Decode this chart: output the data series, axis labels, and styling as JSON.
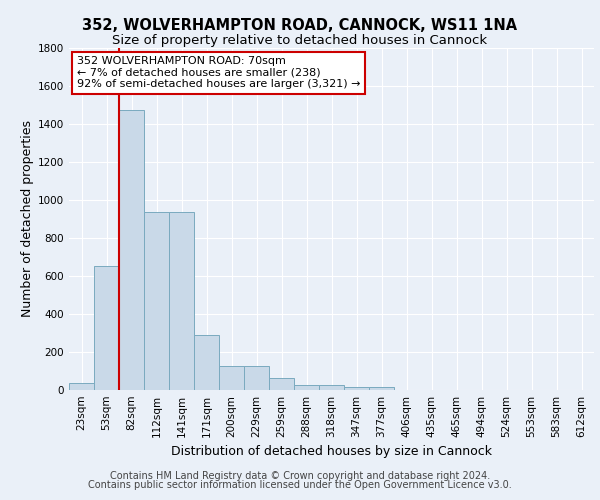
{
  "title_line1": "352, WOLVERHAMPTON ROAD, CANNOCK, WS11 1NA",
  "title_line2": "Size of property relative to detached houses in Cannock",
  "xlabel": "Distribution of detached houses by size in Cannock",
  "ylabel": "Number of detached properties",
  "categories": [
    "23sqm",
    "53sqm",
    "82sqm",
    "112sqm",
    "141sqm",
    "171sqm",
    "200sqm",
    "229sqm",
    "259sqm",
    "288sqm",
    "318sqm",
    "347sqm",
    "377sqm",
    "406sqm",
    "435sqm",
    "465sqm",
    "494sqm",
    "524sqm",
    "553sqm",
    "583sqm",
    "612sqm"
  ],
  "values": [
    38,
    650,
    1470,
    935,
    935,
    290,
    125,
    125,
    65,
    28,
    28,
    15,
    15,
    0,
    0,
    0,
    0,
    0,
    0,
    0,
    0
  ],
  "bar_color": "#c9d9e8",
  "bar_edge_color": "#7aaabf",
  "vline_color": "#cc0000",
  "ylim": [
    0,
    1800
  ],
  "yticks": [
    0,
    200,
    400,
    600,
    800,
    1000,
    1200,
    1400,
    1600,
    1800
  ],
  "annotation_box_text": "352 WOLVERHAMPTON ROAD: 70sqm\n← 7% of detached houses are smaller (238)\n92% of semi-detached houses are larger (3,321) →",
  "footer_line1": "Contains HM Land Registry data © Crown copyright and database right 2024.",
  "footer_line2": "Contains public sector information licensed under the Open Government Licence v3.0.",
  "background_color": "#eaf0f8",
  "grid_color": "#ffffff",
  "title_fontsize": 10.5,
  "subtitle_fontsize": 9.5,
  "axis_label_fontsize": 9,
  "tick_fontsize": 7.5,
  "annotation_fontsize": 8,
  "footer_fontsize": 7
}
